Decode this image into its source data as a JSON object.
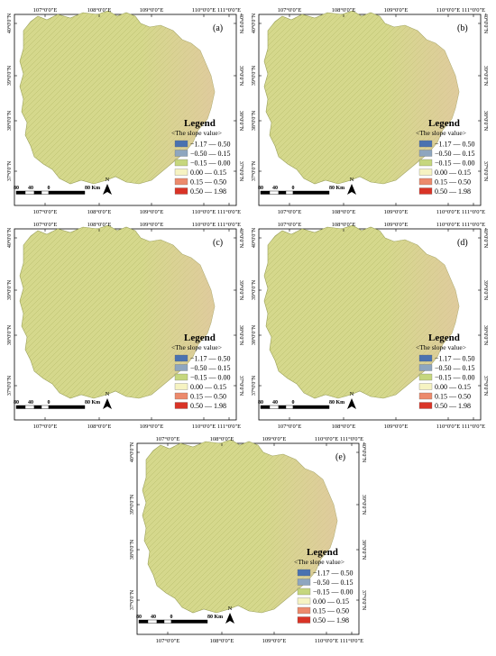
{
  "panels": [
    {
      "label": "(a)"
    },
    {
      "label": "(b)"
    },
    {
      "label": "(c)"
    },
    {
      "label": "(d)"
    },
    {
      "label": "(e)"
    }
  ],
  "axes": {
    "x_ticks": [
      "107°0'0\"E",
      "108°0'0\"E",
      "109°0'0\"E",
      "110°0'0\"E",
      "111°0'0\"E"
    ],
    "y_ticks_left": [
      "40°0'0\"N",
      "39°0'0\"N",
      "38°0'0\"N",
      "37°0'0\"N"
    ],
    "y_ticks_right": [
      "40°0'0\"N",
      "39°0'0\"N",
      "38°0'0\"N",
      "37°0'0\"N"
    ]
  },
  "legend": {
    "title": "Legend",
    "subtitle": "<The slope value>",
    "items": [
      {
        "label": "−1.17 — 0.50",
        "color": "#4a72b0"
      },
      {
        "label": "−0.50 — 0.15",
        "color": "#8ea6bf"
      },
      {
        "label": "−0.15 — 0.00",
        "color": "#c6d77e"
      },
      {
        "label": "0.00 — 0.15",
        "color": "#f6f3c2"
      },
      {
        "label": "0.15 — 0.50",
        "color": "#ec8a6c"
      },
      {
        "label": "0.50 — 1.98",
        "color": "#d93326"
      }
    ]
  },
  "scale_bar": {
    "labels": [
      "80",
      "40",
      "0",
      "80 Km"
    ]
  },
  "north_arrow": {
    "label": "N"
  },
  "colors": {
    "map_fill": "#d5d88c",
    "map_edge": "#b9be6c",
    "map_east": "#e3c7a3",
    "frame": "#000000"
  }
}
